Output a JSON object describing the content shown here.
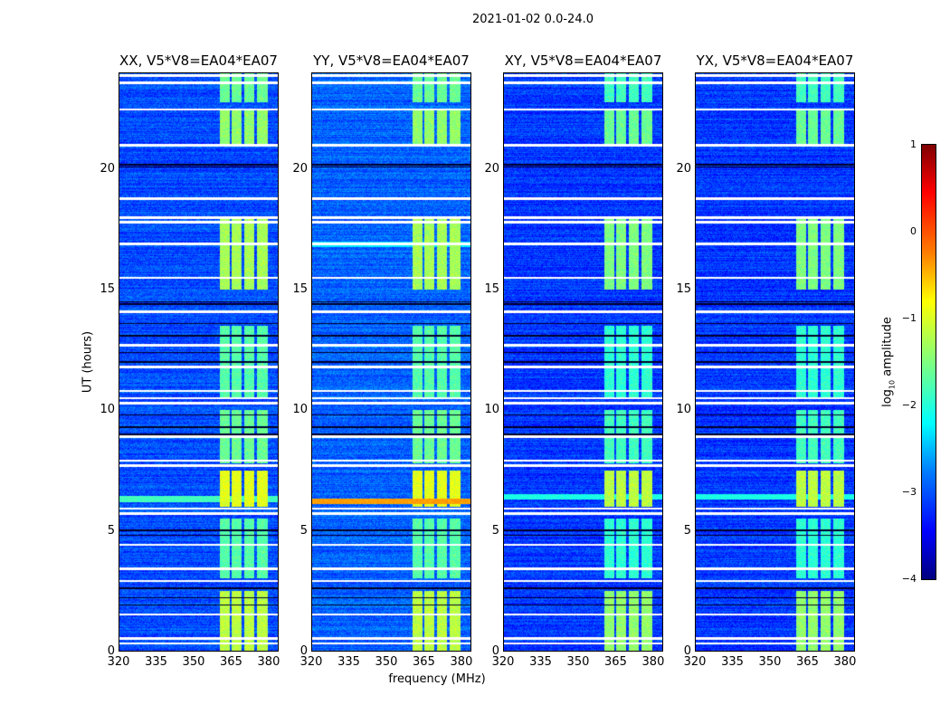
{
  "chart_data": {
    "type": "heatmap",
    "title": "2021-01-02 0.0-24.0",
    "xlabel": "frequency (MHz)",
    "ylabel": "UT (hours)",
    "xlim": [
      320,
      384
    ],
    "ylim": [
      0,
      24
    ],
    "xticks": [
      "320",
      "335",
      "350",
      "365",
      "380"
    ],
    "xtick_values": [
      320,
      335,
      350,
      365,
      380
    ],
    "yticks": [
      "0",
      "5",
      "10",
      "15",
      "20"
    ],
    "ytick_values": [
      0,
      5,
      10,
      15,
      20
    ],
    "panels": [
      {
        "title": "XX, V5*V8=EA04*EA07",
        "background": -3.0,
        "broadband_rfi": [
          {
            "hour": 6.3,
            "level": -1.8
          }
        ]
      },
      {
        "title": "YY, V5*V8=EA04*EA07",
        "background": -2.9,
        "broadband_rfi": [
          {
            "hour": 6.2,
            "level": -0.4
          },
          {
            "hour": 16.9,
            "level": -2.2
          }
        ]
      },
      {
        "title": "XY, V5*V8=EA04*EA07",
        "background": -3.1,
        "broadband_rfi": [
          {
            "hour": 6.4,
            "level": -2.0
          }
        ]
      },
      {
        "title": "YX, V5*V8=EA04*EA07",
        "background": -3.1,
        "broadband_rfi": [
          {
            "hour": 6.4,
            "level": -2.0
          }
        ]
      }
    ],
    "rfi_band_mhz": [
      360.5,
      380
    ],
    "rfi_gaps_mhz": [
      365,
      370,
      375
    ],
    "rfi_periods": [
      {
        "from": 0,
        "to": 2.5,
        "level": -1.2
      },
      {
        "from": 3,
        "to": 5.5,
        "level": -1.7
      },
      {
        "from": 6,
        "to": 7.5,
        "level": -1.0
      },
      {
        "from": 7.8,
        "to": 10,
        "level": -1.6
      },
      {
        "from": 10.5,
        "to": 13.5,
        "level": -1.7
      },
      {
        "from": 15,
        "to": 18,
        "level": -1.3
      },
      {
        "from": 21,
        "to": 22.5,
        "level": -1.4
      },
      {
        "from": 22.8,
        "to": 24,
        "level": -1.6
      }
    ],
    "flagged_hours": [
      0.3,
      0.5,
      1.5,
      2.9,
      3.4,
      4.4,
      5.7,
      5.9,
      7.7,
      7.9,
      8.9,
      10.3,
      10.5,
      10.8,
      11.8,
      12.7,
      14.1,
      15.5,
      16.9,
      17.8,
      18.0,
      18.8,
      21.0,
      22.5,
      23.6,
      23.9
    ],
    "dark_hours": [
      1.9,
      2.2,
      2.6,
      4.8,
      5.0,
      9.0,
      9.3,
      9.8,
      12.0,
      12.4,
      13.1,
      13.6,
      14.4,
      14.5,
      20.1,
      20.2
    ],
    "colorbar": {
      "label": "log10 amplitude",
      "label_base": "log",
      "label_sub": "10",
      "label_rest": " amplitude",
      "range": [
        -4,
        1
      ],
      "ticks": [
        "1",
        "0",
        "−1",
        "−2",
        "−3",
        "−4"
      ],
      "tick_values": [
        1,
        0,
        -1,
        -2,
        -3,
        -4
      ],
      "colormap": "jet"
    }
  }
}
